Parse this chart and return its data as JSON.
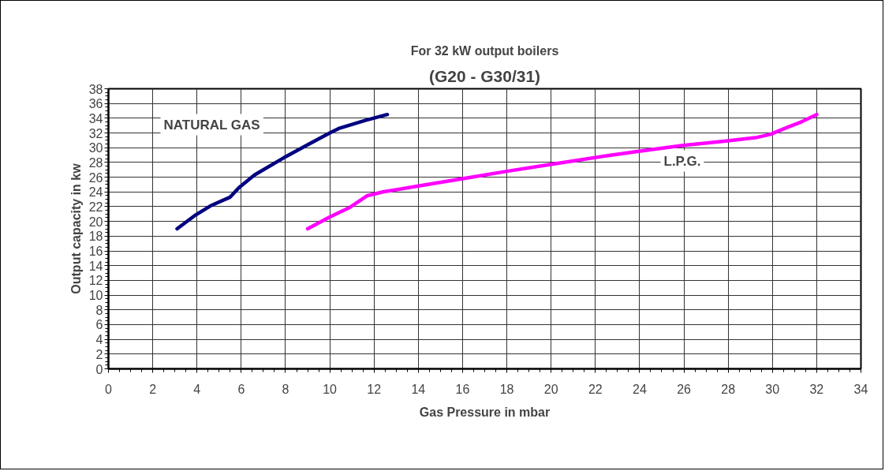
{
  "chart_data": {
    "type": "line",
    "title": "For 32 kW output boilers",
    "subtitle": "(G20 - G30/31)",
    "xlabel": "Gas Pressure in mbar",
    "ylabel": "Output capacity in kw",
    "xlim": [
      0,
      34
    ],
    "ylim": [
      0,
      38
    ],
    "xticks": [
      0,
      2,
      4,
      6,
      8,
      10,
      12,
      14,
      16,
      18,
      20,
      22,
      24,
      26,
      28,
      30,
      32,
      34
    ],
    "yticks": [
      0,
      2,
      4,
      6,
      8,
      10,
      12,
      14,
      16,
      18,
      20,
      22,
      24,
      26,
      28,
      30,
      32,
      34,
      36,
      38
    ],
    "grid": true,
    "marker": "none",
    "line_style": "solid",
    "series": [
      {
        "name": "NATURAL GAS",
        "color": "#000080",
        "x": [
          3.1,
          3.9,
          4.6,
          5.5,
          5.9,
          6.6,
          7.9,
          9.0,
          10.0,
          10.4,
          11.6,
          12.6
        ],
        "values": [
          19.0,
          20.8,
          22.1,
          23.3,
          24.6,
          26.3,
          28.6,
          30.4,
          32.0,
          32.6,
          33.7,
          34.5
        ]
      },
      {
        "name": "L.P.G.",
        "color": "#ff00ff",
        "x": [
          9.0,
          10.0,
          10.9,
          11.7,
          12.4,
          14.0,
          16.0,
          18.0,
          19.9,
          22.5,
          23.9,
          25.9,
          27.9,
          29.3,
          29.9,
          30.7,
          31.3,
          32.0
        ],
        "values": [
          19.0,
          20.6,
          21.9,
          23.5,
          24.0,
          24.8,
          25.8,
          26.8,
          27.7,
          28.9,
          29.5,
          30.3,
          30.9,
          31.4,
          31.8,
          32.8,
          33.5,
          34.5
        ]
      }
    ]
  }
}
